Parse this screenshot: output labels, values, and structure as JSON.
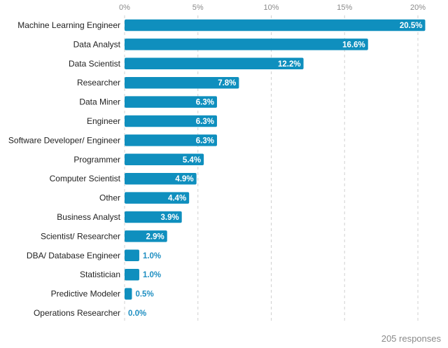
{
  "colors": {
    "bar": "#0f8fbe",
    "grid": "#d0d0d0",
    "tick_text": "#8a8a8a",
    "category_text": "#222222",
    "inside_label": "#ffffff",
    "outside_label": "#1f8fc2"
  },
  "chart_data": {
    "type": "bar",
    "orientation": "horizontal",
    "categories": [
      "Machine Learning Engineer",
      "Data Analyst",
      "Data Scientist",
      "Researcher",
      "Data Miner",
      "Engineer",
      "Software Developer/ Engineer",
      "Programmer",
      "Computer Scientist",
      "Other",
      "Business Analyst",
      "Scientist/ Researcher",
      "DBA/ Database Engineer",
      "Statistician",
      "Predictive Modeler",
      "Operations Researcher"
    ],
    "values": [
      20.5,
      16.6,
      12.2,
      7.8,
      6.3,
      6.3,
      6.3,
      5.4,
      4.9,
      4.4,
      3.9,
      2.9,
      1.0,
      1.0,
      0.5,
      0.0
    ],
    "value_labels": [
      "20.5%",
      "16.6%",
      "12.2%",
      "7.8%",
      "6.3%",
      "6.3%",
      "6.3%",
      "5.4%",
      "4.9%",
      "4.4%",
      "3.9%",
      "2.9%",
      "1.0%",
      "1.0%",
      "0.5%",
      "0.0%"
    ],
    "xlim": [
      0,
      20
    ],
    "xticks": [
      0,
      5,
      10,
      15,
      20
    ],
    "xtick_labels": [
      "0%",
      "5%",
      "10%",
      "15%",
      "20%"
    ],
    "axis_position": "top",
    "grid": true,
    "grid_style": "dashed vertical"
  },
  "footer": {
    "responses": "205 responses"
  }
}
